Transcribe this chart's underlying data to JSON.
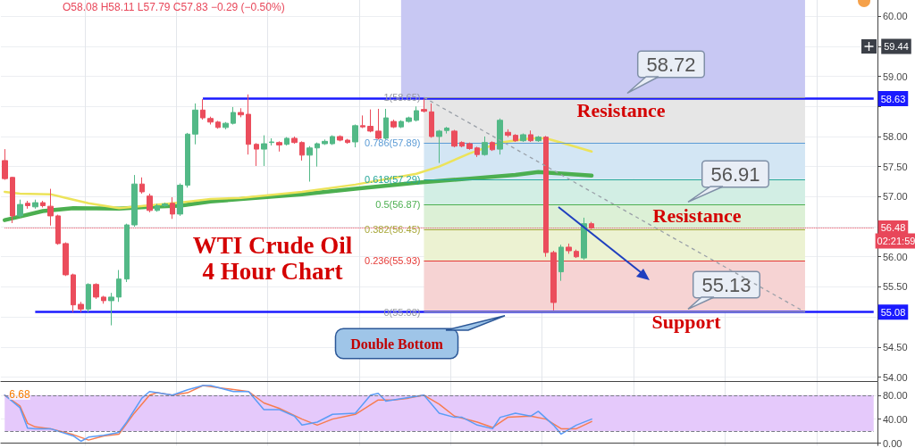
{
  "chart_data": [
    {
      "type": "candlestick",
      "title": "WTI Crude Oil",
      "subtitle": "4 Hour Chart",
      "categories": [
        null,
        null,
        null,
        null,
        null,
        null,
        null,
        null,
        null,
        null,
        null,
        null,
        null,
        null,
        null,
        null,
        null,
        null,
        null,
        null,
        null,
        null,
        null,
        null,
        null,
        null,
        null,
        null,
        null,
        null,
        null,
        null,
        null,
        null,
        null,
        null,
        null,
        null,
        null,
        null,
        null,
        null,
        null,
        null,
        null,
        null,
        null,
        null,
        null,
        null,
        null,
        null,
        null,
        null,
        null,
        null,
        null,
        null,
        null,
        null,
        null,
        null,
        null,
        null,
        null,
        null,
        null,
        null,
        null,
        null,
        null,
        null,
        null,
        null,
        null,
        null,
        null,
        null,
        null,
        null,
        null,
        null,
        null,
        null,
        null,
        null,
        null,
        null,
        null,
        null,
        null,
        null,
        null,
        null,
        null,
        null,
        null,
        null,
        null,
        null,
        null,
        null,
        null,
        null,
        null,
        null,
        null,
        null,
        null,
        null,
        null,
        null,
        null,
        null,
        null
      ],
      "ohlc": [
        [
          57.6,
          57.79,
          57.28,
          57.3
        ],
        [
          57.32,
          57.33,
          56.56,
          56.68
        ],
        [
          56.68,
          56.95,
          56.65,
          56.87
        ],
        [
          56.89,
          56.93,
          56.8,
          56.85
        ],
        [
          56.83,
          56.95,
          56.8,
          56.9
        ],
        [
          56.9,
          56.93,
          56.82,
          56.85
        ],
        [
          56.84,
          57.13,
          56.52,
          56.68
        ],
        [
          56.68,
          56.7,
          56.2,
          56.22
        ],
        [
          56.22,
          56.24,
          55.68,
          55.7
        ],
        [
          55.7,
          55.72,
          55.08,
          55.2
        ],
        [
          55.21,
          55.25,
          55.08,
          55.13
        ],
        [
          55.13,
          55.56,
          55.08,
          55.54
        ],
        [
          55.54,
          55.56,
          55.3,
          55.33
        ],
        [
          55.33,
          55.35,
          55.22,
          55.27
        ],
        [
          55.27,
          55.4,
          54.86,
          55.33
        ],
        [
          55.33,
          55.78,
          55.25,
          55.63
        ],
        [
          55.63,
          56.55,
          55.58,
          56.53
        ],
        [
          56.53,
          57.36,
          56.5,
          57.21
        ],
        [
          57.21,
          57.32,
          57.05,
          57.08
        ],
        [
          57.01,
          57.05,
          56.74,
          56.77
        ],
        [
          56.77,
          56.88,
          56.75,
          56.85
        ],
        [
          56.85,
          56.9,
          56.83,
          56.88
        ],
        [
          56.89,
          56.99,
          56.63,
          56.71
        ],
        [
          56.71,
          57.22,
          56.68,
          57.19
        ],
        [
          57.19,
          58.06,
          57.15,
          58.04
        ],
        [
          58.04,
          58.55,
          57.87,
          58.44
        ],
        [
          58.44,
          58.62,
          58.28,
          58.31
        ],
        [
          58.3,
          58.33,
          58.2,
          58.24
        ],
        [
          58.24,
          58.26,
          58.13,
          58.15
        ],
        [
          58.15,
          58.24,
          58.12,
          58.22
        ],
        [
          58.22,
          58.49,
          58.2,
          58.4
        ],
        [
          58.4,
          58.47,
          58.32,
          58.36
        ],
        [
          58.37,
          58.7,
          57.7,
          57.87
        ],
        [
          57.87,
          57.89,
          57.51,
          57.79
        ],
        [
          57.79,
          58.02,
          57.51,
          57.88
        ],
        [
          57.9,
          57.97,
          57.85,
          57.91
        ],
        [
          57.9,
          57.92,
          57.75,
          57.86
        ],
        [
          57.87,
          57.99,
          57.85,
          57.97
        ],
        [
          57.97,
          58.0,
          57.88,
          57.9
        ],
        [
          57.9,
          57.92,
          57.6,
          57.69
        ],
        [
          57.69,
          57.84,
          57.25,
          57.81
        ],
        [
          57.81,
          57.9,
          57.5,
          57.88
        ],
        [
          57.88,
          57.95,
          57.86,
          57.92
        ],
        [
          57.88,
          58.02,
          57.86,
          58.0
        ],
        [
          58.0,
          58.02,
          57.92,
          57.94
        ],
        [
          57.94,
          57.96,
          57.88,
          57.9
        ],
        [
          57.91,
          58.2,
          57.82,
          58.18
        ],
        [
          58.18,
          58.35,
          58.14,
          58.16
        ],
        [
          58.17,
          58.45,
          58.07,
          58.09
        ],
        [
          58.09,
          58.46,
          57.95,
          57.97
        ],
        [
          57.97,
          58.46,
          57.95,
          58.31
        ],
        [
          58.25,
          58.28,
          58.14,
          58.16
        ],
        [
          58.16,
          58.27,
          58.14,
          58.25
        ],
        [
          58.25,
          58.33,
          58.23,
          58.31
        ],
        [
          58.27,
          58.5,
          58.25,
          58.43
        ],
        [
          58.45,
          58.63,
          58.4,
          58.42
        ],
        [
          58.41,
          58.55,
          57.98,
          58.0
        ],
        [
          58.0,
          58.11,
          57.56,
          58.09
        ],
        [
          58.1,
          58.16,
          58.05,
          58.14
        ],
        [
          58.09,
          58.11,
          57.82,
          57.84
        ],
        [
          57.9,
          57.92,
          57.82,
          57.84
        ],
        [
          57.88,
          57.9,
          57.78,
          57.8
        ],
        [
          57.81,
          57.83,
          57.66,
          57.7
        ],
        [
          57.7,
          58.0,
          57.68,
          57.9
        ],
        [
          57.9,
          57.92,
          57.76,
          57.78
        ],
        [
          57.79,
          58.3,
          57.7,
          58.27
        ],
        [
          58.07,
          58.12,
          57.99,
          58.02
        ],
        [
          58.02,
          58.04,
          57.91,
          57.93
        ],
        [
          57.93,
          58.05,
          57.91,
          58.03
        ],
        [
          58.03,
          58.1,
          57.91,
          57.93
        ],
        [
          57.93,
          58.01,
          57.91,
          57.99
        ],
        [
          57.99,
          58.01,
          56.0,
          56.07
        ],
        [
          56.07,
          56.1,
          55.11,
          55.24
        ],
        [
          55.75,
          56.2,
          55.6,
          56.16
        ],
        [
          56.16,
          56.22,
          56.05,
          56.1
        ],
        [
          56.09,
          56.12,
          55.98,
          56.0
        ],
        [
          55.98,
          56.65,
          55.95,
          56.55
        ],
        [
          56.55,
          56.58,
          56.46,
          56.48
        ],
        null,
        null,
        null,
        null,
        null,
        null,
        null,
        null,
        null,
        null,
        null,
        null,
        null,
        null,
        null,
        null,
        null,
        null,
        null,
        null,
        null,
        null,
        null,
        null,
        null,
        null,
        null,
        null,
        null,
        null,
        null,
        null,
        null,
        null,
        null,
        null,
        null
      ],
      "series": [
        {
          "type": "line",
          "color": "#ece35a",
          "values": [
            57.08,
            null,
            57.05,
            null,
            null,
            null,
            57.04,
            null,
            56.98,
            null,
            null,
            56.89,
            null,
            null,
            null,
            56.81,
            null,
            null,
            null,
            null,
            null,
            null,
            null,
            56.9,
            null,
            null,
            null,
            56.96,
            null,
            null,
            null,
            56.98,
            null,
            null,
            null,
            null,
            null,
            null,
            null,
            57.08,
            null,
            null,
            null,
            null,
            null,
            null,
            57.2,
            null,
            null,
            null,
            null,
            null,
            null,
            null,
            57.38,
            null,
            null,
            57.5,
            null,
            null,
            null,
            57.72,
            null,
            null,
            null,
            57.9,
            null,
            null,
            null,
            57.97,
            null,
            57.97,
            null,
            57.9,
            null,
            null,
            null,
            57.75,
            null,
            null,
            null,
            null,
            null,
            null,
            null,
            null,
            null,
            null,
            null,
            null,
            null,
            null,
            null,
            null,
            null,
            null,
            null,
            null,
            null,
            null,
            null,
            null,
            null,
            null,
            null,
            null,
            null,
            null,
            null,
            null,
            null,
            null,
            null,
            null,
            null
          ]
        },
        {
          "type": "line",
          "color": "#4caf50",
          "values": [
            56.61,
            null,
            56.67,
            null,
            null,
            56.76,
            null,
            null,
            null,
            56.81,
            null,
            null,
            null,
            null,
            null,
            56.8,
            null,
            null,
            null,
            56.83,
            null,
            null,
            null,
            56.85,
            null,
            null,
            null,
            56.92,
            null,
            null,
            null,
            56.96,
            null,
            null,
            null,
            null,
            null,
            null,
            null,
            57.04,
            null,
            null,
            null,
            null,
            null,
            null,
            57.13,
            null,
            null,
            null,
            null,
            null,
            null,
            null,
            57.23,
            null,
            null,
            null,
            null,
            null,
            null,
            57.3,
            null,
            null,
            null,
            null,
            null,
            57.36,
            null,
            null,
            57.41,
            null,
            null,
            null,
            null,
            null,
            null,
            57.35,
            null,
            null,
            null,
            null,
            null,
            null,
            null,
            null,
            null,
            null,
            null,
            null,
            null,
            null,
            null,
            null,
            null,
            null,
            null,
            null,
            null,
            null,
            null,
            null,
            null,
            null,
            null,
            null,
            null,
            null,
            null,
            null,
            null,
            null,
            null,
            null,
            null
          ]
        }
      ],
      "ylim": [
        53.93,
        60.27
      ],
      "yticks": [
        {
          "value": 54,
          "label": "54.00"
        },
        {
          "value": 54.5,
          "label": "54.50"
        },
        {
          "value": 55,
          "label": null
        },
        {
          "value": 55.5,
          "label": "55.50"
        },
        {
          "value": 56,
          "label": "56.00"
        },
        {
          "value": 56.5,
          "label": null
        },
        {
          "value": 57,
          "label": "57.00"
        },
        {
          "value": 57.5,
          "label": "57.50"
        },
        {
          "value": 58,
          "label": "58.00"
        },
        {
          "value": 58.5,
          "label": null
        },
        {
          "value": 59,
          "label": "59.00"
        },
        {
          "value": 59.5,
          "label": null
        },
        {
          "value": 60,
          "label": "60.00"
        }
      ],
      "ref_lines": [
        {
          "axis": "y",
          "value": 58.63,
          "label": "58.63",
          "color": "#1a1aff"
        },
        {
          "axis": "y",
          "value": 55.08,
          "label": "55.08",
          "color": "#1a1aff"
        },
        {
          "axis": "y",
          "value": 56.48,
          "label": "56.48",
          "color": "#e8475a",
          "line_style": "dotted"
        },
        {
          "axis": "y",
          "value": 58.65,
          "label": "1(58.65)",
          "color": "#9598a1"
        },
        {
          "axis": "y",
          "value": 57.89,
          "label": "0.786(57.89)",
          "color": "#5b9bd5"
        },
        {
          "axis": "y",
          "value": 57.29,
          "label": "0.618(57.29)",
          "color": "#26a69a"
        },
        {
          "axis": "y",
          "value": 56.87,
          "label": "0.5(56.87)",
          "color": "#4caf50"
        },
        {
          "axis": "y",
          "value": 56.45,
          "label": "0.382(56.45)",
          "color": "#a8a83a"
        },
        {
          "axis": "y",
          "value": 55.93,
          "label": "0.236(55.93)",
          "color": "#e53935"
        },
        {
          "axis": "y",
          "value": 55.08,
          "label": "0(55.08)",
          "color": "#9598a1"
        }
      ],
      "bands": [
        {
          "axis": "y",
          "from": 58.65,
          "to": 60.27,
          "color": "#c8c8f3"
        },
        {
          "axis": "y",
          "from": 57.89,
          "to": 58.65,
          "color": "#e6e6e6"
        },
        {
          "axis": "y",
          "from": 57.29,
          "to": 57.89,
          "color": "#d3e6f4"
        },
        {
          "axis": "y",
          "from": 56.87,
          "to": 57.29,
          "color": "#d2eee4"
        },
        {
          "axis": "y",
          "from": 56.45,
          "to": 56.87,
          "color": "#dcf0d6"
        },
        {
          "axis": "y",
          "from": 55.93,
          "to": 56.45,
          "color": "#ecf2d2"
        },
        {
          "axis": "y",
          "from": 55.08,
          "to": 55.93,
          "color": "#f6d3d3"
        }
      ],
      "annotations": [
        "Resistance",
        "Resistance",
        "Support",
        {
          "text": "58.72",
          "y": 58.72
        },
        {
          "text": "56.91",
          "y": 56.91
        },
        {
          "text": "55.13",
          "y": 55.13
        },
        {
          "text": "Double Bottom",
          "y": 55.08
        },
        "59.44",
        "02:21:59",
        "O58.08 H58.11 L57.79 C57.83 −0.29 (−0.50%)"
      ],
      "grid": true,
      "marker": "none",
      "tick_labels": "y"
    },
    {
      "type": "line",
      "categories": [
        null,
        null,
        null,
        null,
        null,
        null,
        null,
        null,
        null,
        null,
        null,
        null,
        null,
        null,
        null,
        null,
        null,
        null,
        null,
        null,
        null,
        null,
        null,
        null,
        null,
        null,
        null,
        null,
        null,
        null,
        null,
        null,
        null,
        null,
        null,
        null,
        null,
        null,
        null,
        null,
        null,
        null,
        null,
        null,
        null,
        null,
        null,
        null,
        null,
        null,
        null,
        null,
        null,
        null,
        null,
        null,
        null,
        null,
        null,
        null,
        null,
        null,
        null,
        null,
        null,
        null,
        null,
        null,
        null,
        null,
        null,
        null,
        null,
        null,
        null,
        null,
        null,
        null,
        null,
        null,
        null,
        null,
        null,
        null,
        null,
        null,
        null,
        null,
        null,
        null,
        null,
        null,
        null,
        null,
        null,
        null,
        null,
        null,
        null,
        null,
        null,
        null,
        null,
        null,
        null,
        null,
        null,
        null,
        null,
        null,
        null,
        null,
        null,
        null,
        null
      ],
      "series": [
        {
          "color": "#5b9cf6",
          "values": [
            80,
            null,
            59,
            25,
            24,
            null,
            24,
            null,
            null,
            12,
            3,
            10,
            null,
            13,
            null,
            18,
            35,
            null,
            75,
            86,
            84,
            null,
            80,
            null,
            89,
            null,
            96,
            96,
            null,
            null,
            86,
            null,
            86,
            null,
            56,
            null,
            56,
            null,
            45,
            30,
            null,
            35,
            null,
            48,
            null,
            null,
            50,
            null,
            80,
            83,
            70,
            null,
            74,
            null,
            null,
            80,
            null,
            50,
            null,
            43,
            43,
            null,
            30,
            null,
            24,
            43,
            null,
            50,
            null,
            45,
            53,
            null,
            30,
            15,
            null,
            30,
            null,
            40,
            null,
            null,
            null,
            null,
            null,
            null,
            null,
            null,
            null,
            null,
            null,
            null,
            null,
            null,
            null,
            null,
            null,
            null,
            null,
            null,
            null,
            null,
            null,
            null,
            null,
            null,
            null,
            null,
            null,
            null,
            null,
            null,
            null,
            null,
            null,
            null,
            null
          ]
        },
        {
          "color": "#f77c50",
          "values": [
            80,
            null,
            62,
            33,
            27,
            null,
            24,
            null,
            null,
            14,
            null,
            5,
            null,
            12,
            null,
            15,
            null,
            50,
            null,
            80,
            84,
            null,
            80,
            null,
            84,
            null,
            96,
            null,
            null,
            91,
            null,
            null,
            86,
            null,
            67,
            null,
            58,
            null,
            null,
            40,
            null,
            30,
            null,
            40,
            null,
            null,
            48,
            null,
            null,
            72,
            null,
            72,
            null,
            75,
            null,
            80,
            null,
            65,
            null,
            45,
            null,
            null,
            35,
            null,
            26,
            null,
            43,
            null,
            null,
            45,
            null,
            40,
            null,
            24,
            null,
            24,
            null,
            36,
            null,
            null,
            null,
            null,
            null,
            null,
            null,
            null,
            null,
            null,
            null,
            null,
            null,
            null,
            null,
            null,
            null,
            null,
            null,
            null,
            null,
            null,
            null,
            null,
            null,
            null,
            null,
            null,
            null,
            null,
            null,
            null,
            null,
            null,
            null,
            null,
            null
          ]
        }
      ],
      "ylim": [
        -4,
        102
      ],
      "yticks": [
        {
          "value": 0,
          "label": "0.00"
        },
        {
          "value": 40,
          "label": "40.00"
        },
        {
          "value": 80,
          "label": "80.00"
        }
      ],
      "ref_lines": [
        {
          "axis": "y",
          "value": 80,
          "color": "#787b86",
          "line_style": "dashed"
        },
        {
          "axis": "y",
          "value": 20,
          "color": "#787b86",
          "line_style": "dashed"
        }
      ],
      "bands": [
        {
          "axis": "y",
          "from": 20,
          "to": 80,
          "color": "#e5c9fb"
        }
      ],
      "annotations": [
        "6.68"
      ],
      "grid": true,
      "marker": "none",
      "tick_labels": "y"
    }
  ]
}
